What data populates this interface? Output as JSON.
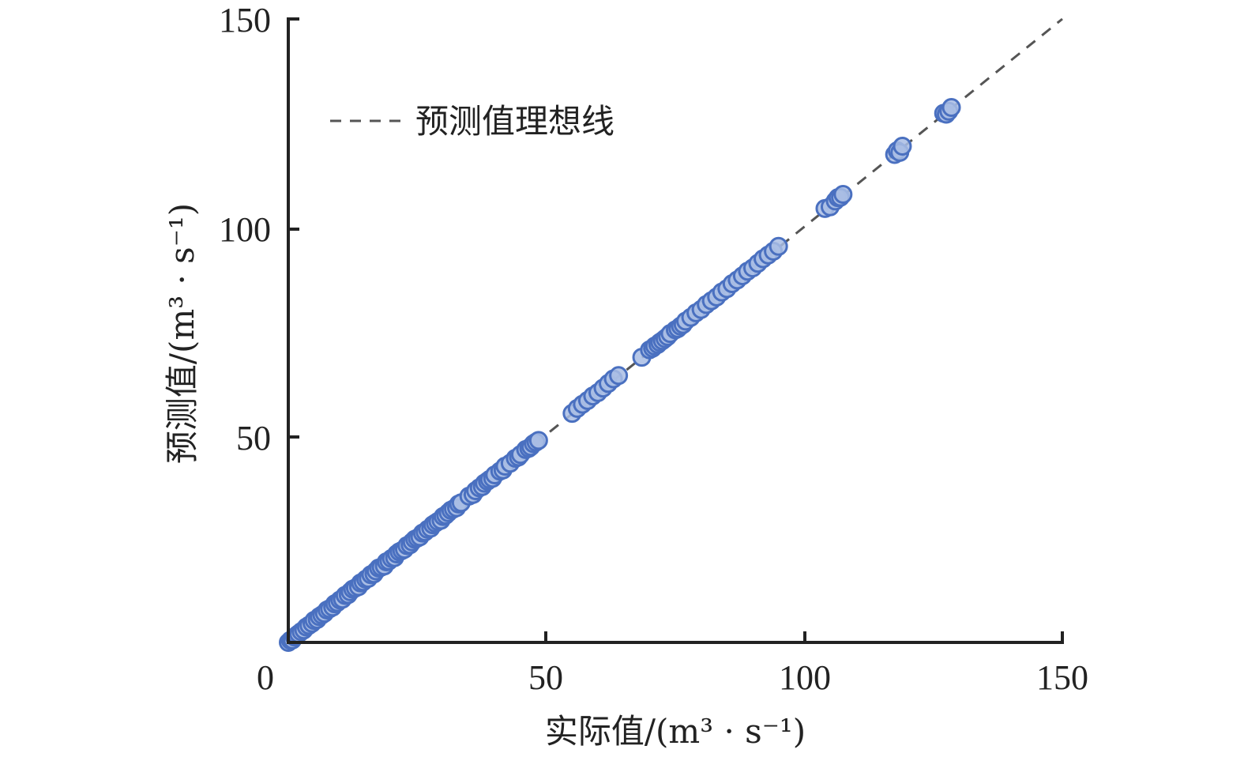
{
  "chart_data": {
    "type": "scatter",
    "xlabel": "实际值/(m³ · s⁻¹)",
    "ylabel": "预测值/(m³ · s⁻¹)",
    "xlim": [
      0,
      150
    ],
    "ylim": [
      0,
      150
    ],
    "x_ticks": [
      "0",
      "50",
      "100",
      "150"
    ],
    "y_ticks": [
      "50",
      "100",
      "150"
    ],
    "grid": false,
    "legend_position": "top-left",
    "legend": [
      "预测值理想线"
    ],
    "ideal_line": {
      "x": [
        0,
        150
      ],
      "y": [
        0,
        150
      ]
    },
    "series": [
      {
        "marker_fill": "#a9bde4",
        "marker_edge": "#4a70c0",
        "points": [
          [
            0,
            0
          ],
          [
            0.4,
            0.5
          ],
          [
            0.8,
            0.6
          ],
          [
            1.2,
            1.3
          ],
          [
            1.6,
            1.7
          ],
          [
            2.0,
            2.1
          ],
          [
            2.5,
            2.6
          ],
          [
            3.0,
            3.0
          ],
          [
            3.5,
            3.7
          ],
          [
            4.0,
            4.1
          ],
          [
            4.6,
            4.6
          ],
          [
            5.0,
            5.3
          ],
          [
            5.6,
            5.5
          ],
          [
            6.0,
            6.2
          ],
          [
            6.5,
            6.6
          ],
          [
            7.0,
            7.0
          ],
          [
            7.5,
            7.8
          ],
          [
            8.0,
            8.1
          ],
          [
            8.6,
            8.5
          ],
          [
            9.0,
            9.3
          ],
          [
            9.5,
            9.6
          ],
          [
            10.0,
            10.2
          ],
          [
            10.5,
            10.4
          ],
          [
            11.0,
            11.3
          ],
          [
            11.6,
            11.5
          ],
          [
            12.0,
            12.2
          ],
          [
            12.5,
            12.8
          ],
          [
            13.0,
            13.1
          ],
          [
            13.6,
            13.4
          ],
          [
            14.0,
            14.3
          ],
          [
            14.5,
            14.6
          ],
          [
            15.0,
            15.2
          ],
          [
            15.5,
            15.4
          ],
          [
            16.0,
            16.3
          ],
          [
            16.6,
            16.5
          ],
          [
            17.0,
            17.2
          ],
          [
            17.5,
            17.9
          ],
          [
            18.0,
            18.1
          ],
          [
            18.6,
            18.4
          ],
          [
            19.0,
            19.4
          ],
          [
            19.5,
            19.6
          ],
          [
            20.0,
            20.2
          ],
          [
            20.6,
            20.4
          ],
          [
            21.0,
            21.3
          ],
          [
            21.5,
            21.8
          ],
          [
            22.0,
            22.1
          ],
          [
            22.5,
            22.4
          ],
          [
            23.0,
            23.3
          ],
          [
            23.6,
            23.5
          ],
          [
            24.0,
            24.2
          ],
          [
            24.5,
            24.8
          ],
          [
            25.0,
            25.1
          ],
          [
            25.5,
            25.4
          ],
          [
            26.0,
            26.3
          ],
          [
            26.5,
            26.6
          ],
          [
            27.0,
            27.2
          ],
          [
            27.6,
            27.5
          ],
          [
            28.0,
            28.3
          ],
          [
            28.5,
            28.7
          ],
          [
            29.0,
            29.1
          ],
          [
            29.6,
            29.4
          ],
          [
            30.0,
            30.3
          ],
          [
            30.5,
            30.6
          ],
          [
            31.0,
            31.2
          ],
          [
            31.5,
            31.8
          ],
          [
            32.0,
            32.1
          ],
          [
            32.6,
            32.4
          ],
          [
            33.0,
            33.3
          ],
          [
            33.5,
            33.6
          ],
          [
            35.0,
            35.2
          ],
          [
            35.8,
            35.6
          ],
          [
            36.3,
            36.5
          ],
          [
            37.0,
            37.2
          ],
          [
            37.6,
            37.5
          ],
          [
            38.0,
            38.3
          ],
          [
            38.6,
            38.8
          ],
          [
            39.0,
            39.2
          ],
          [
            39.6,
            39.5
          ],
          [
            40.0,
            40.3
          ],
          [
            41.0,
            41.2
          ],
          [
            41.6,
            41.5
          ],
          [
            42.0,
            42.4
          ],
          [
            43.0,
            43.1
          ],
          [
            44.0,
            44.3
          ],
          [
            44.6,
            44.6
          ],
          [
            45.0,
            45.2
          ],
          [
            46.0,
            46.4
          ],
          [
            46.6,
            46.7
          ],
          [
            47.0,
            47.1
          ],
          [
            47.5,
            47.8
          ],
          [
            48.0,
            48.2
          ],
          [
            48.5,
            48.6
          ],
          [
            55.0,
            55.1
          ],
          [
            56.0,
            56.3
          ],
          [
            57.0,
            57.3
          ],
          [
            58.0,
            58.2
          ],
          [
            59.0,
            59.3
          ],
          [
            60.0,
            60.1
          ],
          [
            61.0,
            61.2
          ],
          [
            62.0,
            62.3
          ],
          [
            63.0,
            63.4
          ],
          [
            64.0,
            64.2
          ],
          [
            68.5,
            68.6
          ],
          [
            70.0,
            70.4
          ],
          [
            70.6,
            70.8
          ],
          [
            71.0,
            71.3
          ],
          [
            71.6,
            71.7
          ],
          [
            72.0,
            72.2
          ],
          [
            72.5,
            72.6
          ],
          [
            73.0,
            73.1
          ],
          [
            73.5,
            73.6
          ],
          [
            74.0,
            74.3
          ],
          [
            75.0,
            75.2
          ],
          [
            75.5,
            75.5
          ],
          [
            76.0,
            76.1
          ],
          [
            76.5,
            76.5
          ],
          [
            77.0,
            77.3
          ],
          [
            78.0,
            78.2
          ],
          [
            79.0,
            79.3
          ],
          [
            80.0,
            80.1
          ],
          [
            81.0,
            81.3
          ],
          [
            82.0,
            82.2
          ],
          [
            83.0,
            83.1
          ],
          [
            84.0,
            84.3
          ],
          [
            85.0,
            85.1
          ],
          [
            86.0,
            86.3
          ],
          [
            87.0,
            87.2
          ],
          [
            88.0,
            88.2
          ],
          [
            89.0,
            89.3
          ],
          [
            90.0,
            90.1
          ],
          [
            91.0,
            91.2
          ],
          [
            92.0,
            92.3
          ],
          [
            93.0,
            93.2
          ],
          [
            94.0,
            94.1
          ],
          [
            95.0,
            95.3
          ],
          [
            104.0,
            104.4
          ],
          [
            105.0,
            104.8
          ],
          [
            106.0,
            106.2
          ],
          [
            106.5,
            107.0
          ],
          [
            107.0,
            107.1
          ],
          [
            107.5,
            107.8
          ],
          [
            117.5,
            117.4
          ],
          [
            118.0,
            118.3
          ],
          [
            118.5,
            117.9
          ],
          [
            119.0,
            119.4
          ],
          [
            127.0,
            127.3
          ],
          [
            127.5,
            127.1
          ],
          [
            128.0,
            127.8
          ],
          [
            128.5,
            128.7
          ]
        ]
      }
    ]
  }
}
